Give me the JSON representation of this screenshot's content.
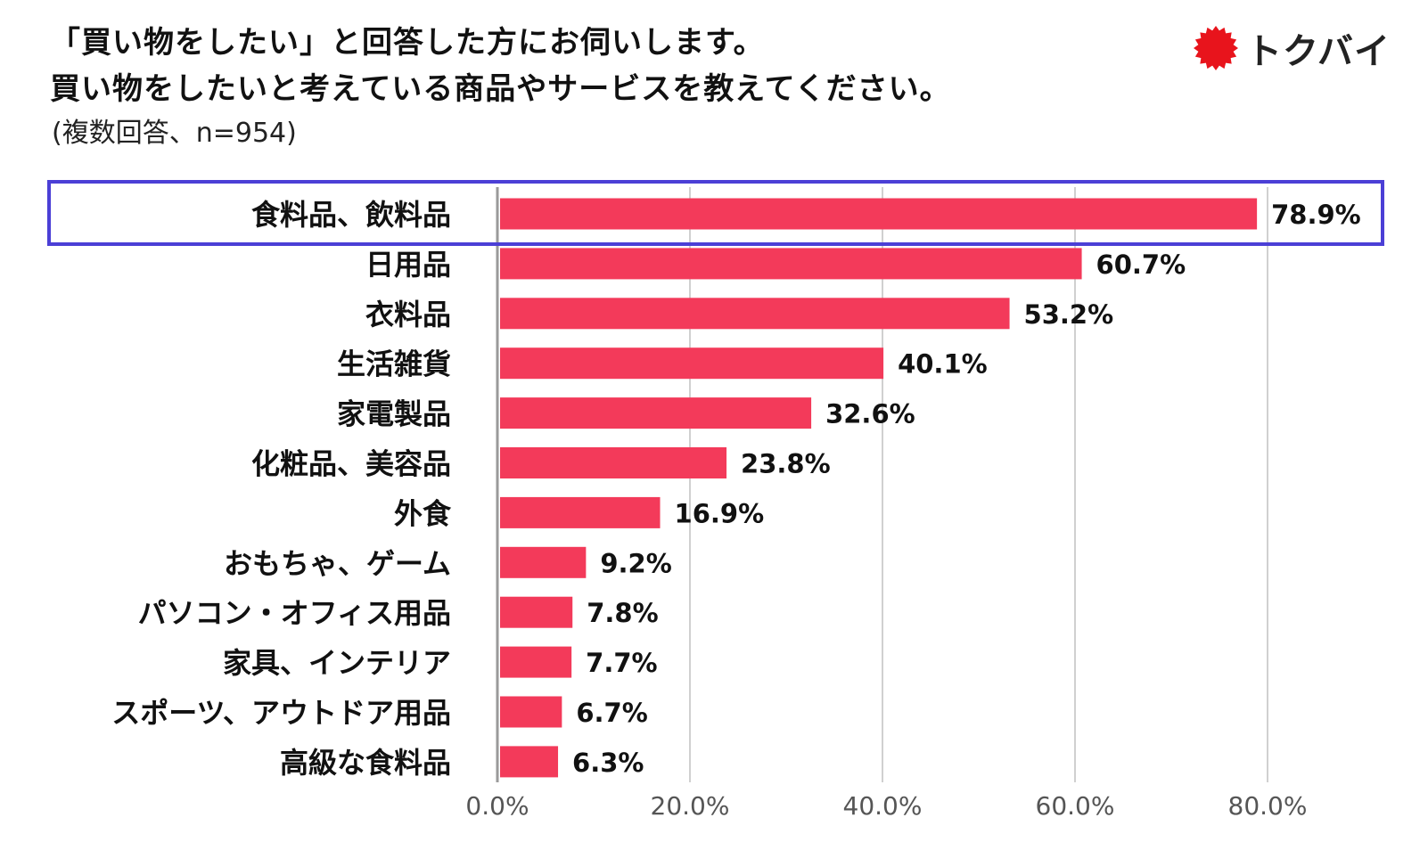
{
  "header": {
    "title_line1": "「買い物をしたい」と回答した方にお伺いします。",
    "title_line2": "買い物をしたいと考えている商品やサービスを教えてください。",
    "subtitle": "(複数回答、n=954)"
  },
  "logo": {
    "text": "トクバイ",
    "icon": "red-starburst-logo-icon",
    "color": "#e8141c"
  },
  "chart_data": {
    "type": "bar",
    "orientation": "horizontal",
    "title": "「買い物をしたい」と回答した方にお伺いします。 買い物をしたいと考えている商品やサービスを教えてください。",
    "categories": [
      "食料品、飲料品",
      "日用品",
      "衣料品",
      "生活雑貨",
      "家電製品",
      "化粧品、美容品",
      "外食",
      "おもちゃ、ゲーム",
      "パソコン・オフィス用品",
      "家具、インテリア",
      "スポーツ、アウトドア用品",
      "高級な食料品"
    ],
    "values": [
      78.9,
      60.7,
      53.2,
      40.1,
      32.6,
      23.8,
      16.9,
      9.2,
      7.8,
      7.7,
      6.7,
      6.3
    ],
    "value_labels": [
      "78.9%",
      "60.7%",
      "53.2%",
      "40.1%",
      "32.6%",
      "23.8%",
      "16.9%",
      "9.2%",
      "7.8%",
      "7.7%",
      "6.7%",
      "6.3%"
    ],
    "xlim": [
      0,
      80
    ],
    "x_ticks": [
      0,
      20,
      40,
      60,
      80
    ],
    "x_tick_labels": [
      "0.0%",
      "20.0%",
      "40.0%",
      "60.0%",
      "80.0%"
    ],
    "highlighted_category": "食料品、飲料品",
    "grid": true,
    "colors": {
      "bar": "#f33a5a",
      "highlight_box": "#4b3fd6",
      "grid": "#d0d0d0",
      "axis": "#9a9a9a"
    }
  }
}
